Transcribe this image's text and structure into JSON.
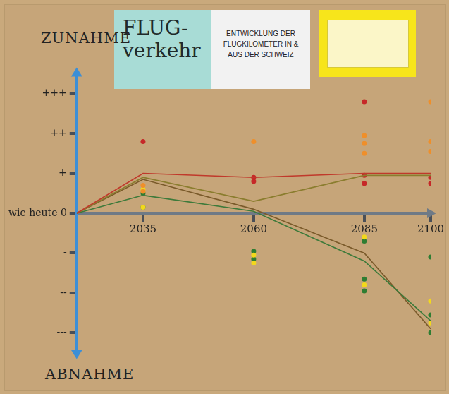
{
  "chart_data": {
    "type": "line",
    "title": "FLUG-\nverkehr",
    "subtitle": "ENTWICKLUNG DER FLUGKILOMETER IN & AUS DER SCHWEIZ",
    "annotations": [
      "ZUNAHME",
      "ABNAHME"
    ],
    "xlim": [
      2020,
      2100
    ],
    "xticks": [
      2035,
      2060,
      2085,
      2100
    ],
    "ylim": [
      -3.5,
      3.5
    ],
    "yticks": [
      {
        "value": 3,
        "label": "+++"
      },
      {
        "value": 2,
        "label": "++"
      },
      {
        "value": 1,
        "label": "+"
      },
      {
        "value": 0,
        "label": "wie heute 0"
      },
      {
        "value": -1,
        "label": "-"
      },
      {
        "value": -2,
        "label": "--"
      },
      {
        "value": -3,
        "label": "---"
      }
    ],
    "grid": false,
    "series": [
      {
        "type": "line",
        "color": "#c0392b",
        "line_style": "solid",
        "marker": "none",
        "x": [
          2020,
          2035,
          2060,
          2085,
          2100
        ],
        "values": [
          0,
          1,
          0.9,
          1,
          1
        ]
      },
      {
        "type": "line",
        "color": "#8a7d2e",
        "line_style": "solid",
        "marker": "none",
        "x": [
          2020,
          2035,
          2060,
          2085,
          2100
        ],
        "values": [
          0,
          0.9,
          0.3,
          0.95,
          0.95
        ]
      },
      {
        "type": "line",
        "color": "#3d7a3a",
        "line_style": "solid",
        "marker": "none",
        "x": [
          2020,
          2035,
          2060,
          2085,
          2100
        ],
        "values": [
          0,
          0.45,
          0.05,
          -1.2,
          -2.7
        ]
      },
      {
        "type": "line",
        "color": "#7a5a2a",
        "line_style": "solid",
        "marker": "none",
        "x": [
          2020,
          2035,
          2060,
          2085,
          2100
        ],
        "values": [
          0,
          0.85,
          0.1,
          -1,
          -2.9
        ]
      },
      {
        "type": "scatter",
        "color": "#c62828",
        "marker": "circle",
        "x": [
          2035,
          2060,
          2060,
          2085,
          2085,
          2085,
          2100,
          2100
        ],
        "values": [
          1.8,
          0.8,
          0.9,
          2.8,
          0.95,
          0.75,
          0.9,
          0.75
        ]
      },
      {
        "type": "scatter",
        "color": "#ef8f2a",
        "marker": "circle",
        "x": [
          2035,
          2035,
          2060,
          2085,
          2085,
          2085,
          2100,
          2100,
          2100
        ],
        "values": [
          0.7,
          0.55,
          1.8,
          1.95,
          1.75,
          1.5,
          2.8,
          1.8,
          1.55
        ]
      },
      {
        "type": "scatter",
        "color": "#f2d81c",
        "marker": "circle",
        "x": [
          2035,
          2035,
          2060,
          2060,
          2085,
          2085,
          2100,
          2100
        ],
        "values": [
          0.6,
          0.15,
          -1.05,
          -1.25,
          -0.6,
          -1.8,
          -2.2,
          -2.75
        ]
      },
      {
        "type": "scatter",
        "color": "#2e7d32",
        "marker": "circle",
        "x": [
          2035,
          2035,
          2060,
          2060,
          2085,
          2085,
          2085,
          2100,
          2100,
          2100
        ],
        "values": [
          0.15,
          0.5,
          -0.95,
          -1.15,
          -0.7,
          -1.65,
          -1.95,
          -1.1,
          -2.55,
          -3
        ]
      }
    ]
  }
}
